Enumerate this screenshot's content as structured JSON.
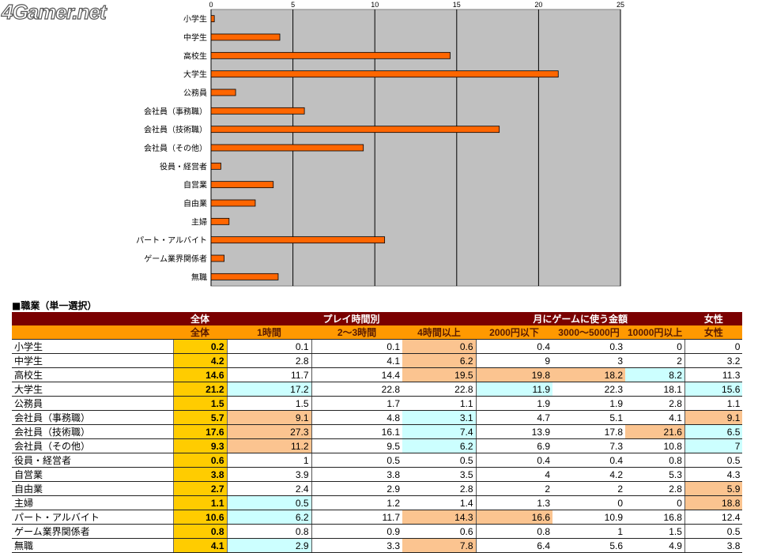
{
  "logo": "4Gamer.net",
  "chart_data": {
    "type": "bar",
    "orientation": "horizontal",
    "categories": [
      "小学生",
      "中学生",
      "高校生",
      "大学生",
      "公務員",
      "会社員（事務職）",
      "会社員（技術職）",
      "会社員（その他）",
      "役員・経営者",
      "自営業",
      "自由業",
      "主婦",
      "パート・アルバイト",
      "ゲーム業界関係者",
      "無職"
    ],
    "values": [
      0.2,
      4.2,
      14.6,
      21.2,
      1.5,
      5.7,
      17.6,
      9.3,
      0.6,
      3.8,
      2.7,
      1.1,
      10.6,
      0.8,
      4.1
    ],
    "xlim": [
      0,
      25
    ],
    "xticks": [
      0,
      5,
      10,
      15,
      20,
      25
    ],
    "grid": true,
    "axis_position": "top",
    "colors": {
      "bar": "#ff6600",
      "plot_bg": "#c0c0c0"
    }
  },
  "table": {
    "title": "■職業（単一選択）",
    "group_headers": [
      "全体",
      "プレイ時間別",
      "月にゲームに使う金額",
      "女性"
    ],
    "columns": [
      "全体",
      "1時間",
      "2～3時間",
      "4時間以上",
      "2000円以下",
      "3000～5000円",
      "10000円以上",
      "女性"
    ],
    "rows": [
      {
        "label": "小学生",
        "values": [
          "0.2",
          "0.1",
          "0.1",
          "0.6",
          "0.4",
          "0.3",
          "0",
          "0"
        ],
        "hl": [
          "",
          "",
          "",
          "hi",
          "",
          "",
          "",
          ""
        ]
      },
      {
        "label": "中学生",
        "values": [
          "4.2",
          "2.8",
          "4.1",
          "6.2",
          "9",
          "3",
          "2",
          "3.2"
        ],
        "hl": [
          "",
          "",
          "",
          "hi",
          "",
          "",
          "",
          ""
        ]
      },
      {
        "label": "高校生",
        "values": [
          "14.6",
          "11.7",
          "14.4",
          "19.5",
          "19.8",
          "18.2",
          "8.2",
          "11.3"
        ],
        "hl": [
          "",
          "",
          "",
          "hi",
          "hi",
          "hi",
          "lo",
          ""
        ]
      },
      {
        "label": "大学生",
        "values": [
          "21.2",
          "17.2",
          "22.8",
          "22.8",
          "11.9",
          "22.3",
          "18.1",
          "15.6"
        ],
        "hl": [
          "",
          "lo",
          "",
          "",
          "lo",
          "",
          "",
          "lo"
        ]
      },
      {
        "label": "公務員",
        "values": [
          "1.5",
          "1.5",
          "1.7",
          "1.1",
          "1.9",
          "1.9",
          "2.8",
          "1.1"
        ],
        "hl": [
          "",
          "",
          "",
          "",
          "",
          "",
          "",
          ""
        ]
      },
      {
        "label": "会社員（事務職）",
        "values": [
          "5.7",
          "9.1",
          "4.8",
          "3.1",
          "4.7",
          "5.1",
          "4.1",
          "9.1"
        ],
        "hl": [
          "",
          "hi",
          "",
          "lo",
          "",
          "",
          "",
          "hi"
        ]
      },
      {
        "label": "会社員（技術職）",
        "values": [
          "17.6",
          "27.3",
          "16.1",
          "7.4",
          "13.9",
          "17.8",
          "21.6",
          "6.5"
        ],
        "hl": [
          "",
          "hi",
          "",
          "lo",
          "",
          "",
          "hi",
          "lo"
        ]
      },
      {
        "label": "会社員（その他）",
        "values": [
          "9.3",
          "11.2",
          "9.5",
          "6.2",
          "6.9",
          "7.3",
          "10.8",
          "7"
        ],
        "hl": [
          "",
          "hi",
          "",
          "lo",
          "",
          "",
          "",
          "lo"
        ]
      },
      {
        "label": "役員・経営者",
        "values": [
          "0.6",
          "1",
          "0.5",
          "0.5",
          "0.4",
          "0.4",
          "0.8",
          "0.5"
        ],
        "hl": [
          "",
          "",
          "",
          "",
          "",
          "",
          "",
          ""
        ]
      },
      {
        "label": "自営業",
        "values": [
          "3.8",
          "3.9",
          "3.8",
          "3.5",
          "4",
          "4.2",
          "5.3",
          "4.3"
        ],
        "hl": [
          "",
          "",
          "",
          "",
          "",
          "",
          "",
          ""
        ]
      },
      {
        "label": "自由業",
        "values": [
          "2.7",
          "2.4",
          "2.9",
          "2.8",
          "2",
          "2",
          "2.8",
          "5.9"
        ],
        "hl": [
          "",
          "",
          "",
          "",
          "",
          "",
          "",
          "hi"
        ]
      },
      {
        "label": "主婦",
        "values": [
          "1.1",
          "0.5",
          "1.2",
          "1.4",
          "1.3",
          "0",
          "0",
          "18.8"
        ],
        "hl": [
          "",
          "lo",
          "",
          "",
          "",
          "",
          "",
          "hi"
        ]
      },
      {
        "label": "パート・アルバイト",
        "values": [
          "10.6",
          "6.2",
          "11.7",
          "14.3",
          "16.6",
          "10.9",
          "16.8",
          "12.4"
        ],
        "hl": [
          "",
          "lo",
          "",
          "hi",
          "hi",
          "",
          "",
          ""
        ]
      },
      {
        "label": "ゲーム業界関係者",
        "values": [
          "0.8",
          "0.8",
          "0.9",
          "0.6",
          "0.8",
          "1",
          "1.5",
          "0.5"
        ],
        "hl": [
          "",
          "",
          "",
          "",
          "",
          "",
          "",
          ""
        ]
      },
      {
        "label": "無職",
        "values": [
          "4.1",
          "2.9",
          "3.3",
          "7.8",
          "6.4",
          "5.6",
          "4.9",
          "3.8"
        ],
        "hl": [
          "",
          "lo",
          "",
          "hi",
          "",
          "",
          "",
          ""
        ]
      }
    ]
  }
}
